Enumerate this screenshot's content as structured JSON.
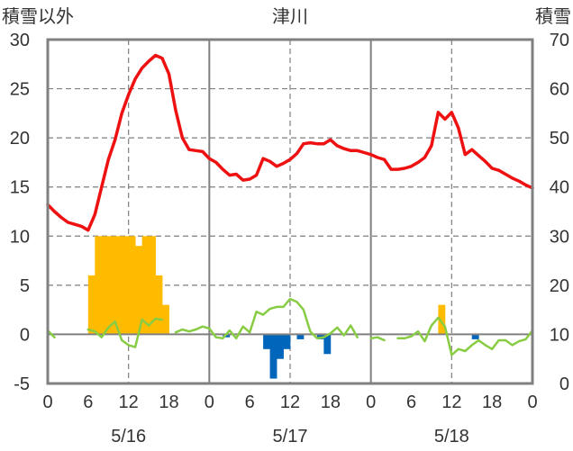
{
  "chart_data": {
    "type": "combo",
    "title": "津川",
    "left_axis_label": "積雪以外",
    "right_axis_label": "積雪",
    "left_ylim": [
      -5,
      30
    ],
    "left_ticks": [
      "-5",
      "0",
      "5",
      "10",
      "15",
      "20",
      "25",
      "30"
    ],
    "right_ylim": [
      0,
      70
    ],
    "right_ticks": [
      "0",
      "10",
      "20",
      "30",
      "40",
      "50",
      "60",
      "70"
    ],
    "x_tick_labels": [
      "0",
      "6",
      "12",
      "18",
      "0",
      "6",
      "12",
      "18",
      "0",
      "6",
      "12",
      "18",
      "0"
    ],
    "days": [
      "5/16",
      "5/17",
      "5/18"
    ],
    "grid": "dashed",
    "colors": {
      "temperature": "#ee1111",
      "wind": "#88cc44",
      "snowfall": "#ffbb00",
      "negative_bars": "#0066bb",
      "frame": "#808080"
    },
    "temperature_series": {
      "axis": "left",
      "values": [
        13.2,
        12.5,
        11.9,
        11.4,
        11.2,
        11,
        10.6,
        12.2,
        15,
        17.8,
        19.8,
        22.5,
        24.4,
        26,
        27.1,
        27.8,
        28.4,
        28.1,
        26.5,
        22.8,
        20,
        18.8,
        18.7,
        18.6,
        17.9,
        17.5,
        16.8,
        16.2,
        16.3,
        15.7,
        15.8,
        16.2,
        17.9,
        17.6,
        17.1,
        17.4,
        17.8,
        18.4,
        19.4,
        19.5,
        19.4,
        19.4,
        19.8,
        19.2,
        18.9,
        18.7,
        18.7,
        18.5,
        18.3,
        18,
        17.8,
        16.8,
        16.8,
        16.9,
        17.1,
        17.5,
        18,
        19.2,
        22.6,
        21.9,
        22.6,
        21,
        18.3,
        18.8,
        18.2,
        17.6,
        16.9,
        16.7,
        16.3,
        15.9,
        15.6,
        15.2,
        14.9
      ],
      "name": ""
    },
    "wind_series": {
      "axis": "left",
      "values": [
        0.4,
        -0.3,
        null,
        null,
        null,
        null,
        0.5,
        0.3,
        -0.3,
        0.7,
        1.3,
        -0.6,
        -1.1,
        -1.3,
        1.5,
        0.9,
        1.6,
        1.5,
        null,
        0.2,
        0.5,
        0.3,
        0.5,
        0.8,
        0.6,
        -0.3,
        -0.4,
        0.4,
        -0.4,
        0.8,
        0.2,
        2.3,
        2,
        2.6,
        2.8,
        2.8,
        3.6,
        3.3,
        2.5,
        0.3,
        -0.4,
        -0.3,
        0.1,
        0.7,
        -0.1,
        0.9,
        -0.3,
        null,
        -0.4,
        -0.3,
        -0.6,
        null,
        -0.4,
        -0.4,
        -0.2,
        0.3,
        -0.7,
        0.9,
        1.7,
        0.8,
        -2.1,
        -1.5,
        -1.7,
        -1.1,
        -0.6,
        -1.1,
        -1.5,
        -0.6,
        -0.6,
        -1.1,
        -0.7,
        -0.5,
        0.4
      ],
      "name": ""
    },
    "bars": {
      "axis": "left",
      "values": [
        0,
        0,
        0,
        0,
        0,
        0,
        6,
        10,
        10,
        10,
        10,
        10,
        10,
        9,
        10,
        10,
        6,
        3,
        0,
        0,
        0,
        0,
        0,
        0,
        0,
        0,
        -0.3,
        0,
        0,
        0,
        0,
        0,
        -1.5,
        -4.5,
        -2.5,
        -1.5,
        0,
        -0.5,
        0,
        0,
        -0.5,
        -2,
        0,
        0,
        0,
        0,
        0,
        0,
        0,
        0,
        0,
        0,
        0,
        0,
        0,
        0,
        0,
        0,
        3,
        0,
        0,
        0,
        0,
        -0.5,
        0,
        0,
        0,
        0,
        0,
        0,
        0,
        0,
        0
      ]
    }
  }
}
